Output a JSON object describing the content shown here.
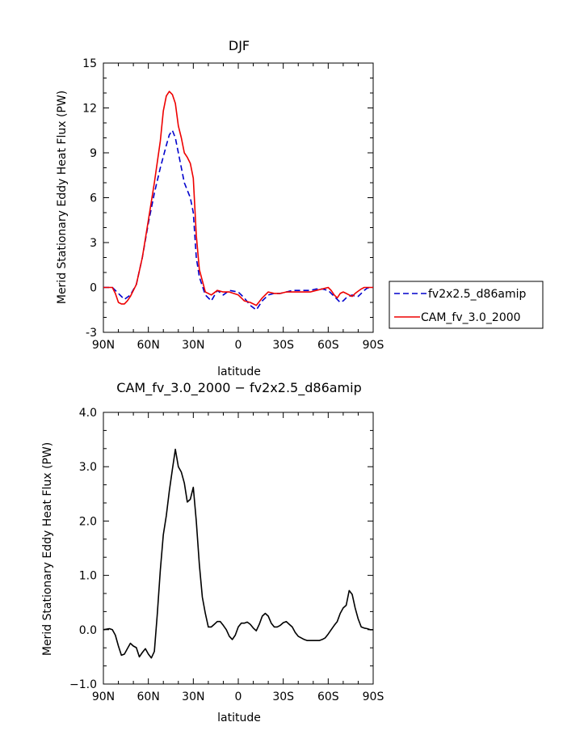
{
  "chart_data": [
    {
      "type": "line",
      "title": "DJF",
      "xlabel": "latitude",
      "ylabel": "Merid Stationary Eddy Heat Flux (PW)",
      "xlim": [
        90,
        -90
      ],
      "ylim": [
        -3,
        15
      ],
      "xticks": [
        90,
        60,
        30,
        0,
        -30,
        -60,
        -90
      ],
      "xtick_labels": [
        "90N",
        "60N",
        "30N",
        "0",
        "30S",
        "60S",
        "90S"
      ],
      "yticks": [
        -3,
        0,
        3,
        6,
        9,
        12,
        15
      ],
      "ytick_labels": [
        "-3",
        "0",
        "3",
        "6",
        "9",
        "12",
        "15"
      ],
      "legend_position": "right",
      "series": [
        {
          "name": "fv2x2.5_d86amip",
          "color": "#0000cc",
          "style": "dashed",
          "x": [
            90,
            84,
            80,
            76,
            72,
            68,
            64,
            60,
            56,
            52,
            48,
            46,
            44,
            42,
            40,
            38,
            36,
            34,
            32,
            30,
            28,
            26,
            22,
            18,
            14,
            10,
            6,
            0,
            -4,
            -8,
            -12,
            -16,
            -20,
            -24,
            -28,
            -32,
            -36,
            -40,
            -44,
            -48,
            -52,
            -56,
            -60,
            -64,
            -68,
            -70,
            -72,
            -74,
            -76,
            -78,
            -80,
            -82,
            -84,
            -86,
            -88,
            -90
          ],
          "y": [
            0,
            0,
            -0.4,
            -0.8,
            -0.5,
            0.2,
            2,
            4.3,
            6.3,
            8,
            9.5,
            10.2,
            10.5,
            10,
            9,
            8,
            7,
            6.5,
            6,
            5,
            2,
            0.7,
            -0.5,
            -0.9,
            -0.2,
            -0.5,
            -0.2,
            -0.3,
            -0.7,
            -1.2,
            -1.5,
            -0.9,
            -0.5,
            -0.4,
            -0.4,
            -0.3,
            -0.2,
            -0.2,
            -0.2,
            -0.2,
            -0.1,
            -0.1,
            -0.2,
            -0.6,
            -1,
            -0.9,
            -0.7,
            -0.6,
            -0.5,
            -0.6,
            -0.6,
            -0.4,
            -0.2,
            -0.05,
            0,
            0
          ]
        },
        {
          "name": "CAM_fv_3.0_2000",
          "color": "#ee0000",
          "style": "solid",
          "x": [
            90,
            84,
            82,
            80,
            78,
            76,
            74,
            72,
            68,
            64,
            60,
            56,
            52,
            50,
            48,
            46,
            44,
            42,
            40,
            38,
            36,
            34,
            32,
            30,
            28,
            26,
            22,
            18,
            14,
            10,
            6,
            0,
            -4,
            -8,
            -12,
            -16,
            -20,
            -24,
            -28,
            -32,
            -36,
            -40,
            -44,
            -48,
            -52,
            -56,
            -60,
            -62,
            -64,
            -66,
            -68,
            -70,
            -72,
            -74,
            -76,
            -78,
            -80,
            -82,
            -84,
            -86,
            -88,
            -90
          ],
          "y": [
            0,
            0,
            -0.4,
            -1,
            -1.1,
            -1.1,
            -0.9,
            -0.6,
            0.2,
            2,
            4.5,
            7,
            9.8,
            11.8,
            12.8,
            13.1,
            12.9,
            12.3,
            10.8,
            10,
            9,
            8.7,
            8.3,
            7.3,
            3.5,
            1.2,
            -0.3,
            -0.5,
            -0.2,
            -0.3,
            -0.3,
            -0.5,
            -0.9,
            -1,
            -1.2,
            -0.7,
            -0.3,
            -0.4,
            -0.4,
            -0.3,
            -0.3,
            -0.3,
            -0.3,
            -0.3,
            -0.2,
            -0.1,
            0,
            -0.2,
            -0.5,
            -0.7,
            -0.4,
            -0.3,
            -0.4,
            -0.5,
            -0.6,
            -0.4,
            -0.25,
            -0.1,
            0,
            0,
            0,
            0
          ]
        }
      ]
    },
    {
      "type": "line",
      "title": "CAM_fv_3.0_2000 − fv2x2.5_d86amip",
      "xlabel": "latitude",
      "ylabel": "Merid Stationary Eddy Heat Flux (PW)",
      "xlim": [
        90,
        -90
      ],
      "ylim": [
        -1,
        4
      ],
      "xticks": [
        90,
        60,
        30,
        0,
        -30,
        -60,
        -90
      ],
      "xtick_labels": [
        "90N",
        "60N",
        "30N",
        "0",
        "30S",
        "60S",
        "90S"
      ],
      "yticks": [
        -1,
        0,
        1,
        2,
        3,
        4
      ],
      "ytick_labels": [
        "−1.0",
        "0.0",
        "1.0",
        "2.0",
        "3.0",
        "4.0"
      ],
      "series": [
        {
          "color": "#000000",
          "style": "solid",
          "x": [
            90,
            86,
            84,
            82,
            80,
            78,
            76,
            74,
            72,
            70,
            68,
            66,
            64,
            62,
            60,
            58,
            56,
            54,
            52,
            50,
            48,
            46,
            44,
            42,
            40,
            38,
            36,
            34,
            32,
            30,
            28,
            26,
            24,
            22,
            20,
            18,
            16,
            14,
            12,
            10,
            8,
            6,
            4,
            2,
            0,
            -2,
            -4,
            -6,
            -8,
            -10,
            -12,
            -14,
            -16,
            -18,
            -20,
            -22,
            -24,
            -26,
            -28,
            -30,
            -32,
            -34,
            -36,
            -38,
            -40,
            -42,
            -44,
            -46,
            -48,
            -50,
            -52,
            -54,
            -56,
            -58,
            -60,
            -62,
            -64,
            -66,
            -68,
            -70,
            -72,
            -74,
            -76,
            -78,
            -80,
            -82,
            -84,
            -86,
            -88,
            -90
          ],
          "y": [
            0,
            0.02,
            0,
            -0.1,
            -0.3,
            -0.47,
            -0.45,
            -0.35,
            -0.25,
            -0.3,
            -0.33,
            -0.5,
            -0.42,
            -0.35,
            -0.45,
            -0.52,
            -0.4,
            0.3,
            1.1,
            1.75,
            2.1,
            2.55,
            2.95,
            3.32,
            3.0,
            2.9,
            2.7,
            2.35,
            2.4,
            2.62,
            2.0,
            1.2,
            0.6,
            0.3,
            0.05,
            0.05,
            0.1,
            0.15,
            0.15,
            0.08,
            0.0,
            -0.12,
            -0.18,
            -0.1,
            0.05,
            0.12,
            0.12,
            0.14,
            0.1,
            0.03,
            -0.02,
            0.1,
            0.25,
            0.3,
            0.25,
            0.12,
            0.05,
            0.05,
            0.08,
            0.13,
            0.15,
            0.1,
            0.05,
            -0.05,
            -0.12,
            -0.15,
            -0.18,
            -0.2,
            -0.2,
            -0.2,
            -0.2,
            -0.2,
            -0.18,
            -0.15,
            -0.08,
            0.0,
            0.08,
            0.15,
            0.3,
            0.4,
            0.45,
            0.72,
            0.65,
            0.4,
            0.2,
            0.05,
            0.03,
            0.02,
            0,
            0
          ]
        }
      ]
    }
  ]
}
